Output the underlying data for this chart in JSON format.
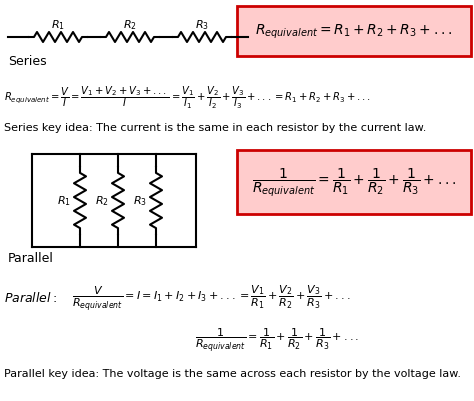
{
  "bg_color": "#ffffff",
  "box_series_color": "#ffcccc",
  "box_series_border": "#cc0000",
  "box_parallel_color": "#ffcccc",
  "box_parallel_border": "#cc0000",
  "fig_width": 4.74,
  "fig_height": 4.02,
  "dpi": 100,
  "series_label": "Series",
  "parallel_label": "Parallel",
  "parallel_label2": "Parallel:",
  "series_key_idea": "Series key idea: The current is the same in each resistor by the current law.",
  "parallel_key_idea": "Parallel key idea: The voltage is the same across each resistor by the voltage law."
}
